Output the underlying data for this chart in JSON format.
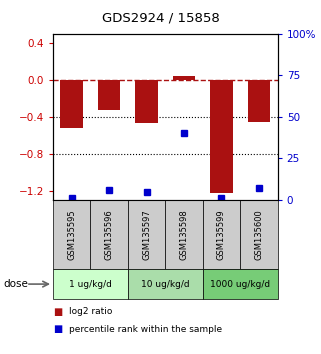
{
  "title": "GDS2924 / 15858",
  "samples": [
    "GSM135595",
    "GSM135596",
    "GSM135597",
    "GSM135598",
    "GSM135599",
    "GSM135600"
  ],
  "log2_ratio": [
    -0.52,
    -0.33,
    -0.47,
    0.04,
    -1.22,
    -0.46
  ],
  "percentile": [
    1,
    6,
    5,
    40,
    1,
    7
  ],
  "bar_color": "#aa1111",
  "dot_color": "#0000cc",
  "ylim_left": [
    -1.3,
    0.5
  ],
  "ylim_right": [
    0,
    100
  ],
  "yticks_left": [
    -1.2,
    -0.8,
    -0.4,
    0.0,
    0.4
  ],
  "yticks_right": [
    0,
    25,
    50,
    75,
    100
  ],
  "ytick_labels_right": [
    "0",
    "25",
    "50",
    "75",
    "100%"
  ],
  "hline_y": 0.0,
  "dotted_lines": [
    -0.4,
    -0.8
  ],
  "dose_groups": [
    {
      "label": "1 ug/kg/d",
      "samples": [
        "GSM135595",
        "GSM135596"
      ],
      "color": "#ccffcc"
    },
    {
      "label": "10 ug/kg/d",
      "samples": [
        "GSM135597",
        "GSM135598"
      ],
      "color": "#aaddaa"
    },
    {
      "label": "1000 ug/kg/d",
      "samples": [
        "GSM135599",
        "GSM135600"
      ],
      "color": "#77cc77"
    }
  ],
  "dose_label": "dose",
  "legend_log2": "log2 ratio",
  "legend_pct": "percentile rank within the sample",
  "background_color": "#ffffff",
  "bar_color_label": "#cc2222",
  "sample_box_color": "#cccccc",
  "left_tick_color": "#cc0000",
  "right_tick_color": "#0000cc"
}
